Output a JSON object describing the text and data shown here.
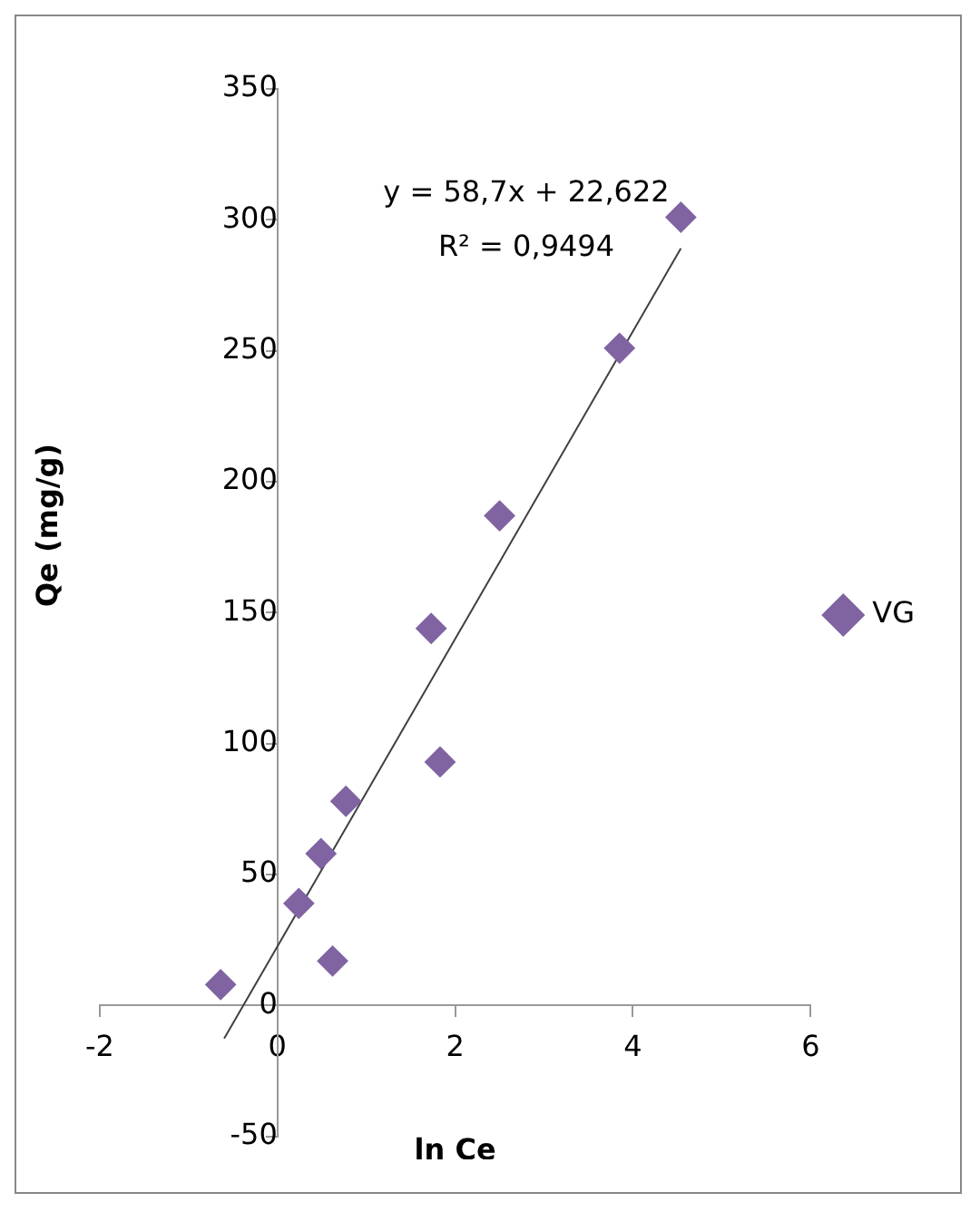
{
  "chart_data": {
    "type": "scatter",
    "xlabel": "ln Ce",
    "ylabel": "Qe (mg/g)",
    "xlim": [
      -2,
      6
    ],
    "xticks": [
      -2,
      0,
      2,
      4,
      6
    ],
    "ylim": [
      -50,
      350
    ],
    "yticks": [
      -50,
      0,
      50,
      100,
      150,
      200,
      250,
      300,
      350
    ],
    "grid": false,
    "legend": "right",
    "marker": "diamond",
    "annotations": [
      "y = 58,7x + 22,622",
      "R² = 0,9494"
    ],
    "series": [
      {
        "name": "VG",
        "type": "scatter",
        "color": "#8064a2",
        "x": [
          -0.64,
          0.24,
          0.49,
          0.62,
          0.77,
          1.73,
          1.83,
          2.5,
          3.85,
          4.54
        ],
        "values": [
          8,
          39,
          58,
          17,
          78,
          144,
          93,
          187,
          251,
          301
        ]
      },
      {
        "type": "line",
        "color": "#404040",
        "marker": "none",
        "x": [
          -0.6,
          4.54
        ],
        "values": [
          -12.6,
          289.1
        ]
      }
    ]
  }
}
